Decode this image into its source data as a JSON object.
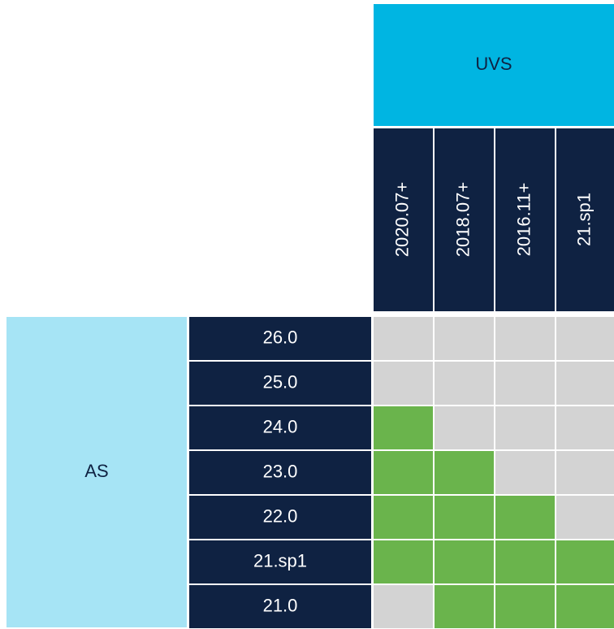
{
  "header": {
    "group": "UVS",
    "columns": [
      "2020.07+",
      "2018.07+",
      "2016.11+",
      "21.sp1"
    ]
  },
  "side": {
    "group": "AS",
    "rows": [
      "26.0",
      "25.0",
      "24.0",
      "23.0",
      "22.0",
      "21.sp1",
      "21.0"
    ]
  },
  "matrix": {
    "supported_color": "#6ab44c",
    "unsupported_color": "#d3d3d3",
    "supported": [
      [
        false,
        false,
        false,
        false
      ],
      [
        false,
        false,
        false,
        false
      ],
      [
        true,
        false,
        false,
        false
      ],
      [
        true,
        true,
        false,
        false
      ],
      [
        true,
        true,
        true,
        false
      ],
      [
        true,
        true,
        true,
        true
      ],
      [
        false,
        true,
        true,
        true
      ]
    ]
  }
}
